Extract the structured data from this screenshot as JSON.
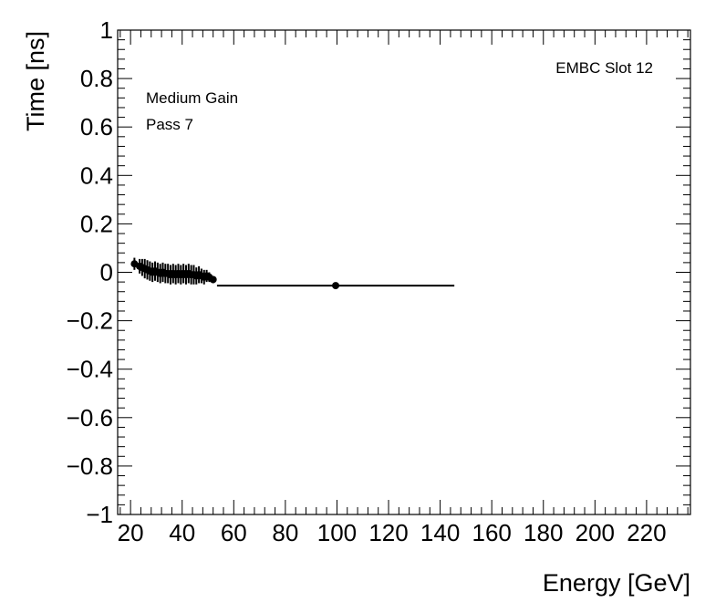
{
  "chart_data": {
    "type": "scatter",
    "title": "",
    "xlabel": "Energy [GeV]",
    "ylabel": "Time [ns]",
    "xlim": [
      15,
      237
    ],
    "ylim": [
      -1,
      1
    ],
    "x_ticks": [
      20,
      40,
      60,
      80,
      100,
      120,
      140,
      160,
      180,
      200,
      220
    ],
    "y_ticks": [
      -1,
      -0.8,
      -0.6,
      -0.4,
      -0.2,
      0,
      0.2,
      0.4,
      0.6,
      0.8,
      1
    ],
    "x_tick_labels": [
      "20",
      "40",
      "60",
      "80",
      "100",
      "120",
      "140",
      "160",
      "180",
      "200",
      "220"
    ],
    "y_tick_labels": [
      "−1",
      "−0.8",
      "−0.6",
      "−0.4",
      "−0.2",
      "0",
      "0.2",
      "0.4",
      "0.6",
      "0.8",
      "1"
    ],
    "grid": false,
    "annotations": {
      "top_right": "EMBC Slot 12",
      "line1": "Medium Gain",
      "line2": "Pass 7"
    },
    "points": [
      {
        "x": 21.5,
        "y": 0.035,
        "xerr": 1.0,
        "yerr": 0.025
      },
      {
        "x": 23.5,
        "y": 0.025,
        "xerr": 0.5,
        "yerr": 0.03
      },
      {
        "x": 24.5,
        "y": 0.02,
        "xerr": 0.5,
        "yerr": 0.035
      },
      {
        "x": 25.5,
        "y": 0.015,
        "xerr": 0.5,
        "yerr": 0.04
      },
      {
        "x": 26.5,
        "y": 0.01,
        "xerr": 0.5,
        "yerr": 0.04
      },
      {
        "x": 27.5,
        "y": 0.005,
        "xerr": 0.5,
        "yerr": 0.04
      },
      {
        "x": 28.5,
        "y": 0.0,
        "xerr": 0.5,
        "yerr": 0.04
      },
      {
        "x": 29.5,
        "y": 0.005,
        "xerr": 0.5,
        "yerr": 0.04
      },
      {
        "x": 30.5,
        "y": 0.0,
        "xerr": 0.5,
        "yerr": 0.04
      },
      {
        "x": 31.5,
        "y": -0.005,
        "xerr": 0.5,
        "yerr": 0.04
      },
      {
        "x": 32.5,
        "y": 0.0,
        "xerr": 0.5,
        "yerr": 0.04
      },
      {
        "x": 33.5,
        "y": -0.005,
        "xerr": 0.5,
        "yerr": 0.04
      },
      {
        "x": 34.5,
        "y": -0.005,
        "xerr": 0.5,
        "yerr": 0.04
      },
      {
        "x": 35.5,
        "y": -0.01,
        "xerr": 0.5,
        "yerr": 0.04
      },
      {
        "x": 36.5,
        "y": -0.005,
        "xerr": 0.5,
        "yerr": 0.04
      },
      {
        "x": 37.5,
        "y": -0.01,
        "xerr": 0.5,
        "yerr": 0.04
      },
      {
        "x": 38.5,
        "y": -0.005,
        "xerr": 0.5,
        "yerr": 0.04
      },
      {
        "x": 39.5,
        "y": -0.01,
        "xerr": 0.5,
        "yerr": 0.04
      },
      {
        "x": 40.5,
        "y": -0.005,
        "xerr": 0.5,
        "yerr": 0.04
      },
      {
        "x": 41.5,
        "y": -0.01,
        "xerr": 0.5,
        "yerr": 0.04
      },
      {
        "x": 42.5,
        "y": -0.005,
        "xerr": 0.5,
        "yerr": 0.04
      },
      {
        "x": 43.5,
        "y": -0.01,
        "xerr": 0.5,
        "yerr": 0.04
      },
      {
        "x": 44.5,
        "y": -0.01,
        "xerr": 0.5,
        "yerr": 0.04
      },
      {
        "x": 45.5,
        "y": -0.015,
        "xerr": 0.5,
        "yerr": 0.035
      },
      {
        "x": 46.5,
        "y": -0.01,
        "xerr": 0.5,
        "yerr": 0.035
      },
      {
        "x": 47.5,
        "y": -0.015,
        "xerr": 0.5,
        "yerr": 0.03
      },
      {
        "x": 48.5,
        "y": -0.02,
        "xerr": 0.5,
        "yerr": 0.03
      },
      {
        "x": 49.5,
        "y": -0.015,
        "xerr": 0.5,
        "yerr": 0.025
      },
      {
        "x": 50.5,
        "y": -0.02,
        "xerr": 0.5,
        "yerr": 0.02
      },
      {
        "x": 52.0,
        "y": -0.03,
        "xerr": 1.0,
        "yerr": 0.015
      },
      {
        "x": 99.5,
        "y": -0.055,
        "xerr": 46.0,
        "yerr": 0.004
      }
    ]
  }
}
